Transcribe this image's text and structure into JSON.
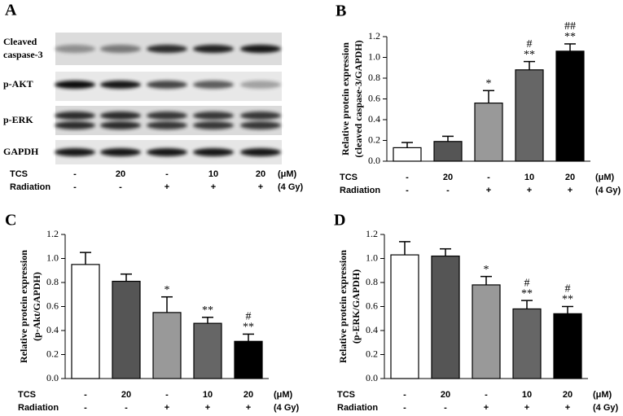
{
  "panel_a": {
    "panel": "A",
    "blots": [
      [
        "Cleaved",
        "caspase-3"
      ],
      [
        "p-AKT"
      ],
      [
        "p-ERK"
      ],
      [
        "GAPDH"
      ]
    ],
    "rows": [
      {
        "name": "TCS",
        "values": [
          "-",
          "20",
          "-",
          "10",
          "20"
        ],
        "unit": "(μM)"
      },
      {
        "name": "Radiation",
        "values": [
          "-",
          "-",
          "+",
          "+",
          "+"
        ],
        "unit": "(4 Gy)"
      }
    ]
  },
  "chart_data": [
    {
      "type": "bar",
      "panel": "B",
      "ylabel": [
        "Relative protein expression",
        "(cleaved caspase-3/GAPDH)"
      ],
      "categories": [
        "-",
        "20",
        "-",
        "10",
        "20"
      ],
      "rows": [
        {
          "name": "TCS",
          "values": [
            "-",
            "20",
            "-",
            "10",
            "20"
          ],
          "unit": "(μM)"
        },
        {
          "name": "Radiation",
          "values": [
            "-",
            "-",
            "+",
            "+",
            "+"
          ],
          "unit": "(4 Gy)"
        }
      ],
      "values": [
        0.13,
        0.19,
        0.56,
        0.88,
        1.06
      ],
      "errors": [
        0.05,
        0.05,
        0.12,
        0.08,
        0.07
      ],
      "colors": [
        "#ffffff",
        "#555555",
        "#999999",
        "#666666",
        "#000000"
      ],
      "sig": [
        null,
        null,
        "*",
        "**",
        "**"
      ],
      "sig2": [
        null,
        null,
        null,
        "#",
        "##"
      ],
      "ylim": [
        0,
        1.2
      ],
      "yticks": [
        {
          "value": 0,
          "label": "0.0"
        },
        0.2,
        0.4,
        0.6,
        0.8,
        {
          "value": 1,
          "label": "1.0"
        },
        1.2
      ]
    },
    {
      "type": "bar",
      "panel": "C",
      "ylabel": [
        "Relative protein expression",
        "(p-Akt/GAPDH)"
      ],
      "categories": [
        "-",
        "20",
        "-",
        "10",
        "20"
      ],
      "rows": [
        {
          "name": "TCS",
          "values": [
            "-",
            "20",
            "-",
            "10",
            "20"
          ],
          "unit": "(μM)"
        },
        {
          "name": "Radiation",
          "values": [
            "-",
            "-",
            "+",
            "+",
            "+"
          ],
          "unit": "(4 Gy)"
        }
      ],
      "values": [
        0.95,
        0.81,
        0.55,
        0.46,
        0.31
      ],
      "errors": [
        0.1,
        0.06,
        0.13,
        0.05,
        0.06
      ],
      "colors": [
        "#ffffff",
        "#555555",
        "#999999",
        "#666666",
        "#000000"
      ],
      "sig": [
        null,
        null,
        "*",
        "**",
        "**"
      ],
      "sig2": [
        null,
        null,
        null,
        null,
        "#"
      ],
      "ylim": [
        0,
        1.2
      ],
      "yticks": [
        {
          "value": 0,
          "label": "0.0"
        },
        0.2,
        0.4,
        0.6,
        0.8,
        {
          "value": 1,
          "label": "1.0"
        },
        1.2
      ]
    },
    {
      "type": "bar",
      "panel": "D",
      "ylabel": [
        "Relative protein expression",
        "(p-ERK/GAPDH)"
      ],
      "categories": [
        "-",
        "20",
        "-",
        "10",
        "20"
      ],
      "rows": [
        {
          "name": "TCS",
          "values": [
            "-",
            "20",
            "-",
            "10",
            "20"
          ],
          "unit": "(μM)"
        },
        {
          "name": "Radiation",
          "values": [
            "-",
            "-",
            "+",
            "+",
            "+"
          ],
          "unit": "(4 Gy)"
        }
      ],
      "values": [
        1.03,
        1.02,
        0.78,
        0.58,
        0.54
      ],
      "errors": [
        0.11,
        0.06,
        0.07,
        0.07,
        0.06
      ],
      "colors": [
        "#ffffff",
        "#555555",
        "#999999",
        "#666666",
        "#000000"
      ],
      "sig": [
        null,
        null,
        "*",
        "**",
        "**"
      ],
      "sig2": [
        null,
        null,
        null,
        "#",
        "#"
      ],
      "ylim": [
        0,
        1.2
      ],
      "yticks": [
        {
          "value": 0,
          "label": "0.0"
        },
        0.2,
        0.4,
        0.6,
        0.8,
        {
          "value": 1,
          "label": "1.0"
        },
        1.2
      ]
    }
  ]
}
